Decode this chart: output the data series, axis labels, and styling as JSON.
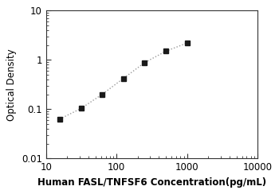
{
  "x_values": [
    15.625,
    31.25,
    62.5,
    125,
    250,
    500,
    1000
  ],
  "y_values": [
    0.063,
    0.103,
    0.2,
    0.42,
    0.88,
    1.5,
    2.2
  ],
  "xlabel": "Human FASL/TNFSF6 Concentration(pg/mL)",
  "ylabel": "Optical Density",
  "xlim": [
    10,
    10000
  ],
  "ylim": [
    0.01,
    10
  ],
  "marker": "s",
  "marker_color": "#1a1a1a",
  "line_color": "#999999",
  "line_style": ":",
  "marker_size": 5,
  "line_width": 1.0,
  "xlabel_fontsize": 8.5,
  "ylabel_fontsize": 8.5,
  "tick_fontsize": 8.5,
  "background_color": "#ffffff",
  "spine_color": "#333333"
}
